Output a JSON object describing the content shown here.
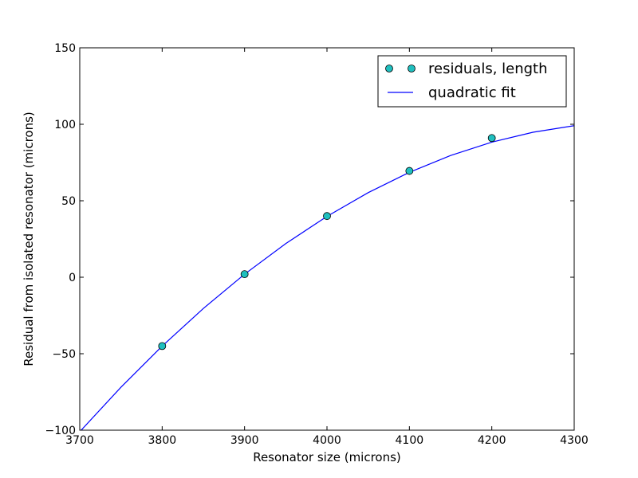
{
  "chart_data": {
    "type": "line",
    "title": "",
    "xlabel": "Resonator size (microns)",
    "ylabel": "Residual from isolated resonator (microns)",
    "xlim": [
      3700,
      4300
    ],
    "ylim": [
      -100,
      150
    ],
    "xticks": [
      3700,
      3800,
      3900,
      4000,
      4100,
      4200,
      4300
    ],
    "xtick_labels": [
      "3700",
      "3800",
      "3900",
      "4000",
      "4100",
      "4200",
      "4300"
    ],
    "yticks": [
      -100,
      -50,
      0,
      50,
      100,
      150
    ],
    "ytick_labels": [
      "−100",
      "−50",
      "0",
      "50",
      "100",
      "150"
    ],
    "grid": false,
    "legend_position": "top-right",
    "series": [
      {
        "name": "residuals, length",
        "kind": "scatter",
        "marker": "circle",
        "color": "#1fbfbf",
        "x": [
          3800,
          3900,
          4000,
          4100,
          4200
        ],
        "y": [
          -45,
          2,
          40,
          69.5,
          91
        ]
      },
      {
        "name": "quadratic fit",
        "kind": "line",
        "color": "#0000ff",
        "x": [
          3700,
          3750,
          3800,
          3850,
          3900,
          3950,
          4000,
          4050,
          4100,
          4150,
          4200,
          4250,
          4300
        ],
        "y": [
          -101,
          -71.9,
          -45.0,
          -20.4,
          2.0,
          22.0,
          39.8,
          55.3,
          68.6,
          79.6,
          88.3,
          94.8,
          99.1
        ]
      }
    ]
  }
}
